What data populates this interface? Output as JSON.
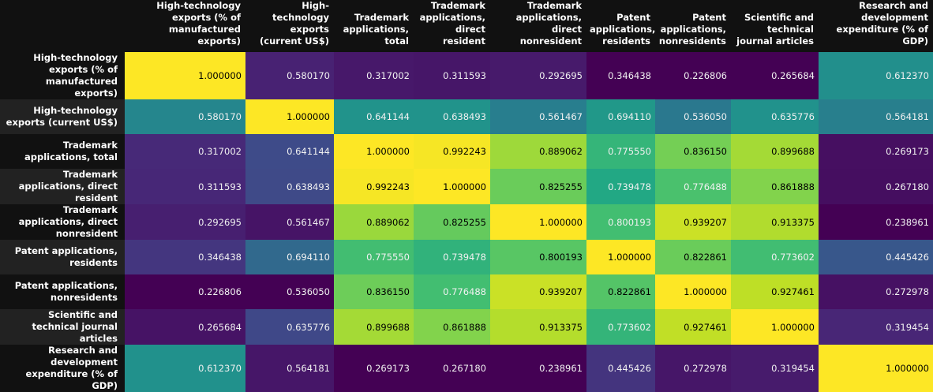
{
  "chart_data": {
    "type": "heatmap",
    "colormap": "viridis",
    "colors": {
      "low": "#440154",
      "mid": "#21908c",
      "high": "#fde725",
      "text_light": "#f1f1f1",
      "text_dark": "#000000"
    },
    "columns": [
      "High-technology exports (% of manufactured exports)",
      "High-technology exports (current US$)",
      "Trademark applications, total",
      "Trademark applications, direct resident",
      "Trademark applications, direct nonresident",
      "Patent applications, residents",
      "Patent applications, nonresidents",
      "Scientific and technical journal articles",
      "Research and development expenditure (% of GDP)"
    ],
    "rows": [
      {
        "label": "High-technology exports (% of manufactured exports)",
        "values": [
          "1.000000",
          "0.580170",
          "0.317002",
          "0.311593",
          "0.292695",
          "0.346438",
          "0.226806",
          "0.265684",
          "0.612370"
        ]
      },
      {
        "label": "High-technology exports (current US$)",
        "values": [
          "0.580170",
          "1.000000",
          "0.641144",
          "0.638493",
          "0.561467",
          "0.694110",
          "0.536050",
          "0.635776",
          "0.564181"
        ]
      },
      {
        "label": "Trademark applications, total",
        "values": [
          "0.317002",
          "0.641144",
          "1.000000",
          "0.992243",
          "0.889062",
          "0.775550",
          "0.836150",
          "0.899688",
          "0.269173"
        ]
      },
      {
        "label": "Trademark applications, direct resident",
        "values": [
          "0.311593",
          "0.638493",
          "0.992243",
          "1.000000",
          "0.825255",
          "0.739478",
          "0.776488",
          "0.861888",
          "0.267180"
        ]
      },
      {
        "label": "Trademark applications, direct nonresident",
        "values": [
          "0.292695",
          "0.561467",
          "0.889062",
          "0.825255",
          "1.000000",
          "0.800193",
          "0.939207",
          "0.913375",
          "0.238961"
        ]
      },
      {
        "label": "Patent applications, residents",
        "values": [
          "0.346438",
          "0.694110",
          "0.775550",
          "0.739478",
          "0.800193",
          "1.000000",
          "0.822861",
          "0.773602",
          "0.445426"
        ]
      },
      {
        "label": "Patent applications, nonresidents",
        "values": [
          "0.226806",
          "0.536050",
          "0.836150",
          "0.776488",
          "0.939207",
          "0.822861",
          "1.000000",
          "0.927461",
          "0.272978"
        ]
      },
      {
        "label": "Scientific and technical journal articles",
        "values": [
          "0.265684",
          "0.635776",
          "0.899688",
          "0.861888",
          "0.913375",
          "0.773602",
          "0.927461",
          "1.000000",
          "0.319454"
        ]
      },
      {
        "label": "Research and development expenditure (% of GDP)",
        "values": [
          "0.612370",
          "0.564181",
          "0.269173",
          "0.267180",
          "0.238961",
          "0.445426",
          "0.272978",
          "0.319454",
          "1.000000"
        ]
      }
    ]
  }
}
